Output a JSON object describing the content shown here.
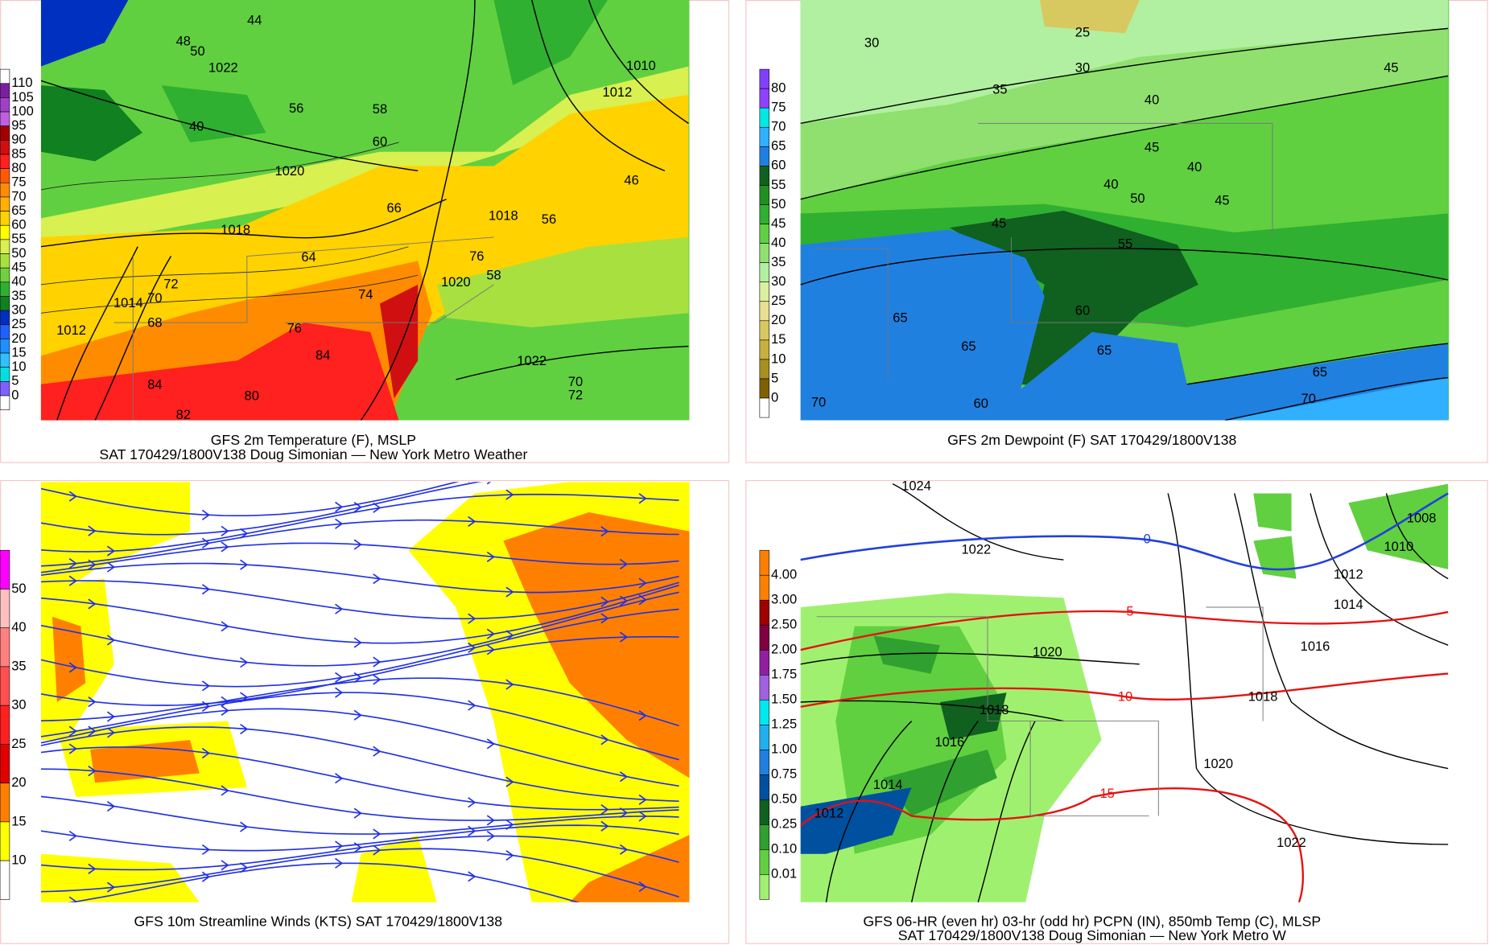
{
  "panels": [
    {
      "caption": [
        "GFS 2m Temperature (F), MSLP",
        "SAT 170429/1800V138 Doug Simonian — New York Metro Weather"
      ],
      "colorbar": [
        "110",
        "105",
        "100",
        "95",
        "90",
        "85",
        "80",
        "75",
        "70",
        "65",
        "60",
        "55",
        "50",
        "45",
        "40",
        "35",
        "30",
        "25",
        "20",
        "15",
        "10",
        "5",
        "0"
      ],
      "labels": [
        "44",
        "48",
        "50",
        "56",
        "58",
        "60",
        "66",
        "64",
        "74",
        "76",
        "84",
        "84",
        "82",
        "80",
        "72",
        "70",
        "68",
        "1012",
        "1014",
        "1018",
        "1020",
        "1022",
        "1020",
        "1022",
        "1018",
        "1012",
        "1010",
        "56",
        "46",
        "40",
        "72",
        "70",
        "76",
        "58"
      ]
    },
    {
      "caption": [
        "GFS 2m Dewpoint (F)  SAT 170429/1800V138"
      ],
      "colorbar": [
        "80",
        "75",
        "70",
        "65",
        "60",
        "55",
        "50",
        "45",
        "40",
        "35",
        "30",
        "25",
        "20",
        "15",
        "10",
        "5",
        "0"
      ],
      "labels": [
        "25",
        "30",
        "30",
        "35",
        "40",
        "45",
        "45",
        "40",
        "40",
        "50",
        "45",
        "45",
        "55",
        "65",
        "60",
        "65",
        "65",
        "65",
        "70",
        "70",
        "60"
      ]
    },
    {
      "caption": [
        "GFS 10m Streamline Winds (KTS)  SAT 170429/1800V138"
      ],
      "colorbar": [
        "50",
        "40",
        "35",
        "30",
        "25",
        "20",
        "15",
        "10"
      ],
      "labels": []
    },
    {
      "caption": [
        "GFS 06-HR (even hr) 03-hr (odd hr) PCPN (IN), 850mb Temp (C), MLSP",
        "SAT 170429/1800V138 Doug Simonian — New York Metro W"
      ],
      "colorbar": [
        "4.00",
        "3.00",
        "2.50",
        "2.00",
        "1.75",
        "1.50",
        "1.25",
        "1.00",
        "0.75",
        "0.50",
        "0.25",
        "0.10",
        "0.01"
      ],
      "labels": [
        "1024",
        "1022",
        "0",
        "1008",
        "1010",
        "1012",
        "1014",
        "5",
        "1016",
        "1020",
        "10",
        "1018",
        "1018",
        "1016",
        "1020",
        "1014",
        "15",
        "1012",
        "1022"
      ]
    }
  ]
}
